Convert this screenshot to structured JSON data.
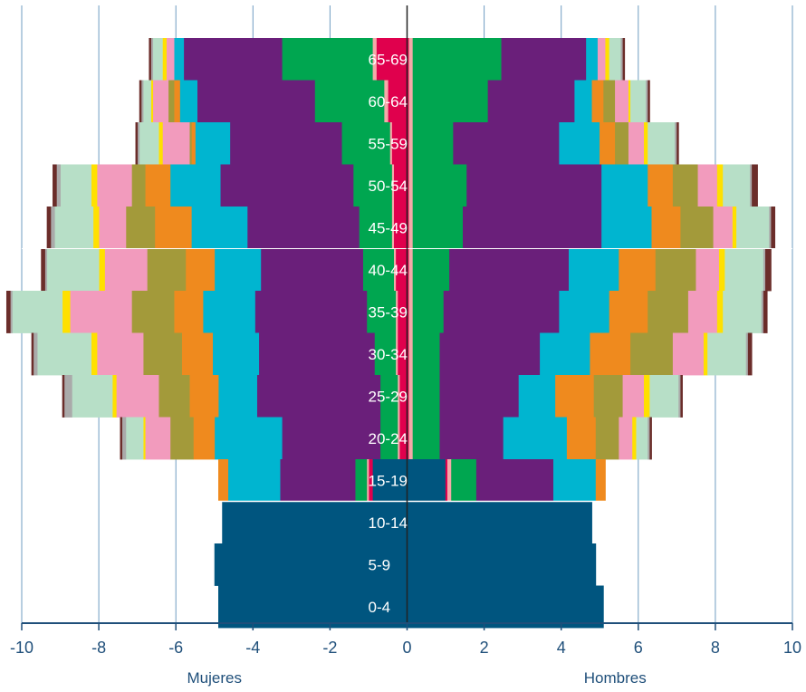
{
  "chart_data": {
    "type": "bar",
    "orientation": "horizontal-population-pyramid",
    "xlim": [
      -10,
      10
    ],
    "xticks": [
      -10,
      -8,
      -6,
      -4,
      -2,
      0,
      2,
      4,
      6,
      8,
      10
    ],
    "xtick_labels": [
      "-10",
      "-8",
      "-6",
      "-4",
      "-2",
      "0",
      "2",
      "4",
      "6",
      "8",
      "10"
    ],
    "left_label": "Mujeres",
    "right_label": "Hombres",
    "grid": true,
    "age_groups": [
      "65-69",
      "60-64",
      "55-59",
      "50-54",
      "45-49",
      "40-44",
      "35-39",
      "30-34",
      "25-29",
      "20-24",
      "15-19",
      "10-14",
      "5-9",
      "0-4"
    ],
    "series": [
      {
        "color": "#00557f",
        "mujeres": [
          0,
          0,
          0,
          0,
          0,
          0,
          0,
          0,
          0,
          0,
          0.9,
          4.8,
          5.0,
          4.9
        ],
        "hombres": [
          0,
          0,
          0,
          0,
          0,
          0,
          0,
          0,
          0,
          0,
          1.0,
          4.8,
          4.9,
          5.1
        ]
      },
      {
        "color": "#e0004d",
        "mujeres": [
          0.8,
          0.5,
          0.4,
          0.35,
          0.35,
          0.3,
          0.25,
          0.25,
          0.2,
          0.2,
          0.1,
          0,
          0,
          0
        ],
        "hombres": [
          0.05,
          0.05,
          0.05,
          0.05,
          0.05,
          0.05,
          0.05,
          0.05,
          0.05,
          0.05,
          0.05,
          0,
          0,
          0
        ]
      },
      {
        "color": "#f5a9a9",
        "mujeres": [
          0.1,
          0.1,
          0.05,
          0.05,
          0.05,
          0.05,
          0.05,
          0.05,
          0.05,
          0.05,
          0.05,
          0,
          0,
          0
        ],
        "hombres": [
          0.1,
          0.1,
          0.1,
          0.1,
          0.1,
          0.1,
          0.1,
          0.1,
          0.1,
          0.1,
          0.1,
          0,
          0,
          0
        ]
      },
      {
        "color": "#00a650",
        "mujeres": [
          2.35,
          1.8,
          1.25,
          1.0,
          0.85,
          0.8,
          0.75,
          0.55,
          0.45,
          0.45,
          0.3,
          0,
          0,
          0
        ],
        "hombres": [
          2.3,
          1.95,
          1.05,
          1.4,
          1.3,
          0.95,
          0.8,
          0.7,
          0.7,
          0.7,
          0.65,
          0,
          0,
          0
        ]
      },
      {
        "color": "#6a1f7a",
        "mujeres": [
          2.55,
          3.05,
          2.9,
          3.45,
          2.9,
          2.65,
          2.9,
          3.0,
          3.2,
          2.55,
          1.95,
          0,
          0,
          0
        ],
        "hombres": [
          2.2,
          2.25,
          2.75,
          3.5,
          3.6,
          3.1,
          3.0,
          2.6,
          2.05,
          1.65,
          2.0,
          0,
          0,
          0
        ]
      },
      {
        "color": "#00b5d0",
        "mujeres": [
          0.25,
          0.45,
          0.9,
          1.3,
          1.45,
          1.2,
          1.35,
          1.2,
          1.0,
          1.75,
          1.35,
          0,
          0,
          0
        ],
        "hombres": [
          0.3,
          0.45,
          1.05,
          1.2,
          1.3,
          1.3,
          1.3,
          1.3,
          0.95,
          1.65,
          1.1,
          0,
          0,
          0
        ]
      },
      {
        "color": "#ef8a1e",
        "mujeres": [
          0,
          0.15,
          0.1,
          0.65,
          0.95,
          0.75,
          0.75,
          0.8,
          0.75,
          0.55,
          0.25,
          0,
          0,
          0
        ],
        "hombres": [
          0,
          0.3,
          0.4,
          0.65,
          0.75,
          0.95,
          1.0,
          1.05,
          1.0,
          0.75,
          0.25,
          0,
          0,
          0
        ]
      },
      {
        "color": "#a39a3a",
        "mujeres": [
          0,
          0.15,
          0.05,
          0.35,
          0.75,
          1.0,
          1.1,
          1.0,
          0.8,
          0.6,
          0,
          0,
          0,
          0
        ],
        "hombres": [
          0,
          0.3,
          0.35,
          0.65,
          0.85,
          1.05,
          1.05,
          1.1,
          0.75,
          0.6,
          0,
          0,
          0,
          0
        ]
      },
      {
        "color": "#f29bbd",
        "mujeres": [
          0.2,
          0.4,
          0.7,
          0.9,
          0.7,
          1.1,
          1.6,
          1.2,
          1.1,
          0.65,
          0,
          0,
          0,
          0
        ],
        "hombres": [
          0.2,
          0.35,
          0.4,
          0.5,
          0.5,
          0.6,
          0.75,
          0.8,
          0.55,
          0.35,
          0,
          0,
          0,
          0
        ]
      },
      {
        "color": "#ffe000",
        "mujeres": [
          0.1,
          0.05,
          0.1,
          0.15,
          0.15,
          0.15,
          0.2,
          0.15,
          0.1,
          0.05,
          0,
          0,
          0,
          0
        ],
        "hombres": [
          0.1,
          0.05,
          0.1,
          0.15,
          0.1,
          0.15,
          0.15,
          0.1,
          0.15,
          0.1,
          0,
          0,
          0,
          0
        ]
      },
      {
        "color": "#b7dfc7",
        "mujeres": [
          0.25,
          0.2,
          0.5,
          0.8,
          1.0,
          1.35,
          1.3,
          1.4,
          1.05,
          0.45,
          0,
          0,
          0,
          0
        ],
        "hombres": [
          0.3,
          0.4,
          0.7,
          0.7,
          0.85,
          1.0,
          1.0,
          1.0,
          0.75,
          0.3,
          0,
          0,
          0,
          0
        ]
      },
      {
        "color": "#aaaaaa",
        "mujeres": [
          0.05,
          0.05,
          0.05,
          0.1,
          0.1,
          0.05,
          0.05,
          0.1,
          0.2,
          0.1,
          0,
          0,
          0,
          0
        ],
        "hombres": [
          0.05,
          0.05,
          0.05,
          0.05,
          0.05,
          0.05,
          0.05,
          0.05,
          0.05,
          0.05,
          0,
          0,
          0,
          0
        ]
      },
      {
        "color": "#6b2d2a",
        "mujeres": [
          0.05,
          0.05,
          0.05,
          0.1,
          0.1,
          0.1,
          0.1,
          0.05,
          0.05,
          0.05,
          0,
          0,
          0,
          0
        ],
        "hombres": [
          0.05,
          0.05,
          0.05,
          0.15,
          0.1,
          0.15,
          0.1,
          0.1,
          0.05,
          0.05,
          0,
          0,
          0,
          0
        ]
      }
    ]
  }
}
